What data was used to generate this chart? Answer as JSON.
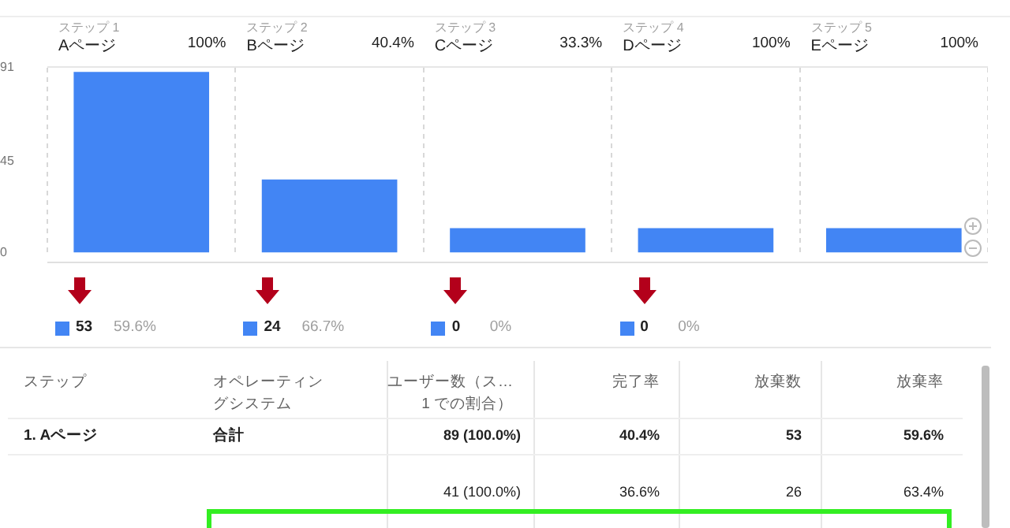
{
  "chart_data": {
    "type": "bar",
    "categories": [
      "Aページ",
      "Bページ",
      "Cページ",
      "Dページ",
      "Eページ"
    ],
    "values": [
      89,
      36,
      12,
      12,
      12
    ],
    "color": "#4285f4",
    "ylim": [
      0,
      91
    ],
    "yticks": [
      0,
      45,
      91
    ],
    "grid": "x",
    "annotations": [
      "ステップ 1",
      "ステップ 2",
      "ステップ 3",
      "ステップ 4",
      "ステップ 5",
      "100%",
      "40.4%",
      "33.3%",
      "100%",
      "100%",
      "53",
      "59.6%",
      "24",
      "66.7%",
      "0",
      "0%",
      "0",
      "0%",
      "ステップ",
      "オペレーティングシステム",
      "ユーザー数（ス…1 での割合）",
      "完了率",
      "放棄数",
      "放棄率",
      "1. Aページ",
      "合計",
      "89 (100.0%)",
      "40.4%",
      "53",
      "59.6%",
      "41 (100.0%)",
      "36.6%",
      "26",
      "63.4%"
    ]
  }
}
